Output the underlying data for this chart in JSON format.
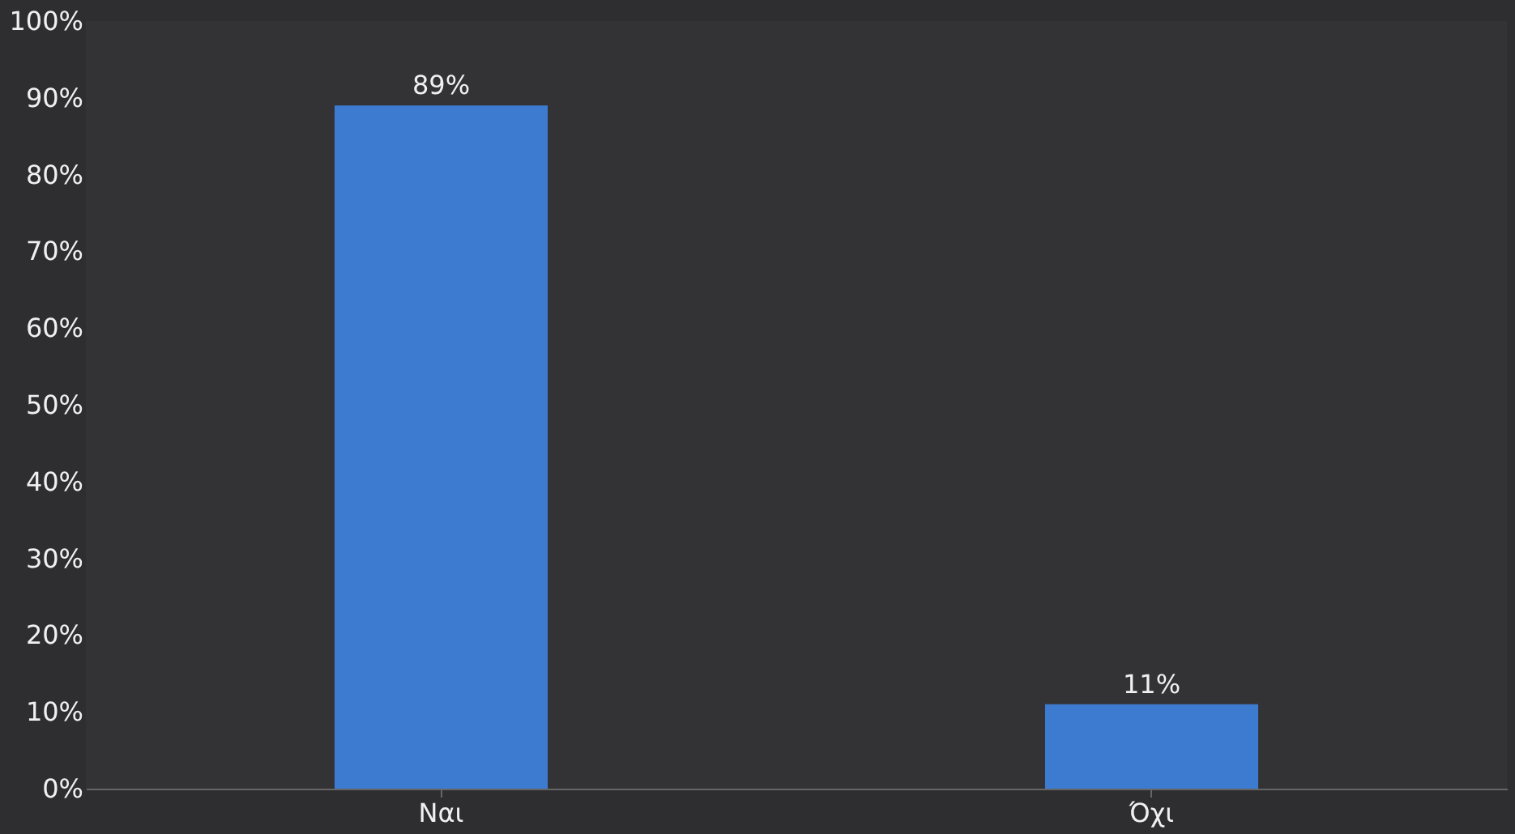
{
  "chart_data": {
    "type": "bar",
    "categories": [
      "Ναι",
      "Όχι"
    ],
    "values": [
      89,
      11
    ],
    "color": "#3d7bd0",
    "value_labels": [
      "89%",
      "11%"
    ],
    "ylim": [
      0,
      100
    ],
    "yticks": [
      {
        "value": 0,
        "label": "0%"
      },
      {
        "value": 10,
        "label": "10%"
      },
      {
        "value": 20,
        "label": "20%"
      },
      {
        "value": 30,
        "label": "30%"
      },
      {
        "value": 40,
        "label": "40%"
      },
      {
        "value": 50,
        "label": "50%"
      },
      {
        "value": 60,
        "label": "60%"
      },
      {
        "value": 70,
        "label": "70%"
      },
      {
        "value": 80,
        "label": "80%"
      },
      {
        "value": 90,
        "label": "90%"
      },
      {
        "value": 100,
        "label": "100%"
      }
    ],
    "grid": false
  }
}
